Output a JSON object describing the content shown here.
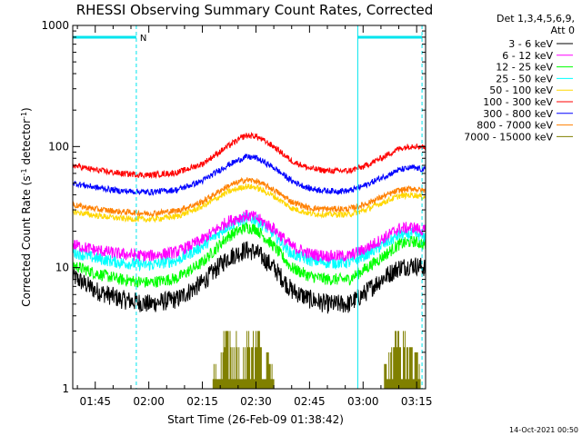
{
  "chart_data": {
    "type": "line",
    "title": "RHESSI Observing Summary Count Rates, Corrected",
    "xlabel": "Start Time (26-Feb-09 01:38:42)",
    "ylabel_main": "Corrected Count Rate (s",
    "ylabel_sup": "-1",
    "ylabel_mid": " detector",
    "ylabel_sup2": "-1",
    "ylabel_end": ")",
    "y_scale": "log",
    "ylim": [
      1,
      1000
    ],
    "xlim_minutes": [
      98.7,
      197.5
    ],
    "x_ticks": [
      {
        "label": "01:45",
        "minutes": 105
      },
      {
        "label": "02:00",
        "minutes": 120
      },
      {
        "label": "02:15",
        "minutes": 135
      },
      {
        "label": "02:30",
        "minutes": 150
      },
      {
        "label": "02:45",
        "minutes": 165
      },
      {
        "label": "03:00",
        "minutes": 180
      },
      {
        "label": "03:15",
        "minutes": 195
      }
    ],
    "y_ticks": [
      {
        "label": "1",
        "value": 1
      },
      {
        "label": "10",
        "value": 10
      },
      {
        "label": "100",
        "value": 100
      },
      {
        "label": "1000",
        "value": 1000
      }
    ],
    "legend_header": [
      "Det 1,3,4,5,6,9,",
      "Att 0"
    ],
    "legend_placement": "right",
    "series": [
      {
        "name": "3 - 6 keV",
        "color": "#000000",
        "points": [
          [
            98.7,
            8.5
          ],
          [
            105,
            6.5
          ],
          [
            112,
            5.5
          ],
          [
            120,
            5.0
          ],
          [
            128,
            5.5
          ],
          [
            135,
            7.5
          ],
          [
            142,
            12
          ],
          [
            147,
            14
          ],
          [
            150,
            13.5
          ],
          [
            155,
            10
          ],
          [
            160,
            6.5
          ],
          [
            165,
            5.5
          ],
          [
            170,
            5.0
          ],
          [
            176,
            5.0
          ],
          [
            180,
            6.0
          ],
          [
            185,
            8
          ],
          [
            190,
            10
          ],
          [
            194,
            10.5
          ],
          [
            197.5,
            10
          ]
        ]
      },
      {
        "name": "6 - 12 keV",
        "color": "#ff00ff",
        "points": [
          [
            98.7,
            15.5
          ],
          [
            105,
            14
          ],
          [
            112,
            13
          ],
          [
            120,
            12.5
          ],
          [
            128,
            13.5
          ],
          [
            135,
            17
          ],
          [
            142,
            24
          ],
          [
            147,
            27
          ],
          [
            150,
            26
          ],
          [
            155,
            21
          ],
          [
            160,
            15
          ],
          [
            165,
            13
          ],
          [
            170,
            12.5
          ],
          [
            176,
            12.5
          ],
          [
            180,
            14
          ],
          [
            185,
            17
          ],
          [
            190,
            21
          ],
          [
            194,
            21.5
          ],
          [
            197.5,
            20
          ]
        ]
      },
      {
        "name": "12 - 25 keV",
        "color": "#00ff00",
        "points": [
          [
            98.7,
            10.5
          ],
          [
            105,
            9.0
          ],
          [
            112,
            8.0
          ],
          [
            120,
            7.5
          ],
          [
            128,
            8.2
          ],
          [
            135,
            11
          ],
          [
            142,
            18
          ],
          [
            147,
            21.5
          ],
          [
            150,
            21
          ],
          [
            155,
            15
          ],
          [
            160,
            10
          ],
          [
            165,
            8.5
          ],
          [
            170,
            8.0
          ],
          [
            176,
            8.0
          ],
          [
            180,
            9.5
          ],
          [
            185,
            12
          ],
          [
            190,
            15.5
          ],
          [
            194,
            16.5
          ],
          [
            197.5,
            15.5
          ]
        ]
      },
      {
        "name": "25 - 50 keV",
        "color": "#00ffff",
        "points": [
          [
            98.7,
            13.5
          ],
          [
            105,
            12
          ],
          [
            112,
            11
          ],
          [
            120,
            10.5
          ],
          [
            128,
            11.5
          ],
          [
            135,
            15
          ],
          [
            142,
            22
          ],
          [
            147,
            25.5
          ],
          [
            150,
            25
          ],
          [
            155,
            19
          ],
          [
            160,
            13
          ],
          [
            165,
            11.5
          ],
          [
            170,
            11
          ],
          [
            176,
            11
          ],
          [
            180,
            12.5
          ],
          [
            185,
            15
          ],
          [
            190,
            18.5
          ],
          [
            194,
            19
          ],
          [
            197.5,
            18
          ]
        ]
      },
      {
        "name": "50 - 100 keV",
        "color": "#ffd700",
        "points": [
          [
            98.7,
            29
          ],
          [
            105,
            27
          ],
          [
            112,
            25.5
          ],
          [
            120,
            25
          ],
          [
            128,
            26.5
          ],
          [
            135,
            32
          ],
          [
            142,
            42
          ],
          [
            147,
            47
          ],
          [
            150,
            46
          ],
          [
            155,
            39
          ],
          [
            160,
            31
          ],
          [
            165,
            28
          ],
          [
            170,
            27.5
          ],
          [
            176,
            27.5
          ],
          [
            180,
            29.5
          ],
          [
            185,
            34
          ],
          [
            190,
            39
          ],
          [
            194,
            40
          ],
          [
            197.5,
            38
          ]
        ]
      },
      {
        "name": "100 - 300 keV",
        "color": "#ff0000",
        "points": [
          [
            98.7,
            70
          ],
          [
            105,
            64
          ],
          [
            112,
            60
          ],
          [
            120,
            58
          ],
          [
            128,
            61
          ],
          [
            135,
            72
          ],
          [
            142,
            100
          ],
          [
            147,
            123
          ],
          [
            150,
            122
          ],
          [
            155,
            100
          ],
          [
            160,
            76
          ],
          [
            165,
            66
          ],
          [
            170,
            63
          ],
          [
            176,
            63
          ],
          [
            180,
            68
          ],
          [
            185,
            80
          ],
          [
            190,
            96
          ],
          [
            194,
            102
          ],
          [
            197.5,
            98
          ]
        ]
      },
      {
        "name": "300 - 800 keV",
        "color": "#0000ff",
        "points": [
          [
            98.7,
            50
          ],
          [
            105,
            46
          ],
          [
            112,
            43
          ],
          [
            120,
            42
          ],
          [
            128,
            44
          ],
          [
            135,
            52
          ],
          [
            142,
            70
          ],
          [
            147,
            82
          ],
          [
            150,
            81
          ],
          [
            155,
            67
          ],
          [
            160,
            52
          ],
          [
            165,
            45
          ],
          [
            170,
            43
          ],
          [
            176,
            43
          ],
          [
            180,
            47
          ],
          [
            185,
            55
          ],
          [
            190,
            64
          ],
          [
            194,
            67
          ],
          [
            197.5,
            64
          ]
        ]
      },
      {
        "name": "800 - 7000 keV",
        "color": "#ff8000",
        "points": [
          [
            98.7,
            33
          ],
          [
            105,
            30.5
          ],
          [
            112,
            29
          ],
          [
            120,
            28
          ],
          [
            128,
            29.5
          ],
          [
            135,
            35
          ],
          [
            142,
            47
          ],
          [
            147,
            53
          ],
          [
            150,
            52
          ],
          [
            155,
            44
          ],
          [
            160,
            35
          ],
          [
            165,
            31
          ],
          [
            170,
            30.5
          ],
          [
            176,
            30.5
          ],
          [
            180,
            33
          ],
          [
            185,
            38
          ],
          [
            190,
            43.5
          ],
          [
            194,
            45
          ],
          [
            197.5,
            43
          ]
        ]
      },
      {
        "name": "7000 - 15000 keV",
        "color": "#808000",
        "points": []
      }
    ],
    "olive_bursts": [
      {
        "start": 138,
        "end": 155,
        "levels": [
          1,
          2,
          3
        ]
      },
      {
        "start": 186,
        "end": 196,
        "levels": [
          1,
          2,
          3
        ]
      }
    ],
    "attenuator_markers": [
      {
        "minutes": 98.7,
        "style": "solid"
      },
      {
        "minutes": 116.5,
        "style": "dashed"
      },
      {
        "minutes": 178.5,
        "style": "solid"
      },
      {
        "minutes": 196.5,
        "style": "dashed"
      }
    ],
    "top_bars": [
      {
        "start": 98.7,
        "end": 116.5,
        "label": "N"
      },
      {
        "start": 178.5,
        "end": 196.5,
        "label": ""
      }
    ],
    "timestamp": "14-Oct-2021 00:50"
  }
}
